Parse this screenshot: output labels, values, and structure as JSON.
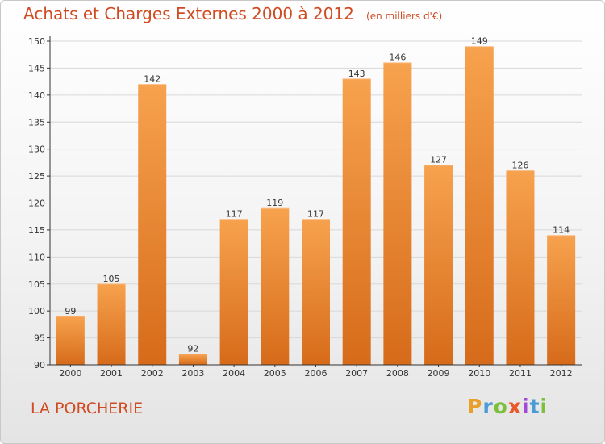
{
  "header": {
    "title": "Achats et Charges Externes 2000 à 2012",
    "subtitle": "(en milliers d'€)"
  },
  "footer": {
    "commune": "LA PORCHERIE",
    "logo_letters": [
      "P",
      "r",
      "o",
      "x",
      "i",
      "t",
      "i"
    ],
    "logo_colors": [
      "#e8a02a",
      "#4a9bd8",
      "#7cbf3a",
      "#e85a2a",
      "#a04ad8",
      "#4a9bd8",
      "#7cbf3a"
    ]
  },
  "chart_data": {
    "type": "bar",
    "title": "Achats et Charges Externes 2000 à 2012",
    "subtitle": "(en milliers d'€)",
    "categories": [
      "2000",
      "2001",
      "2002",
      "2003",
      "2004",
      "2005",
      "2006",
      "2007",
      "2008",
      "2009",
      "2010",
      "2011",
      "2012"
    ],
    "values": [
      99,
      105,
      142,
      92,
      117,
      119,
      117,
      143,
      146,
      127,
      149,
      126,
      114
    ],
    "ylim": [
      90,
      150
    ],
    "yticks": [
      90,
      95,
      100,
      105,
      110,
      115,
      120,
      125,
      130,
      135,
      140,
      145,
      150
    ],
    "grid": true,
    "colors": {
      "bar_light": "#f7a24e",
      "bar_dark": "#d66b1a",
      "grid": "#d8d8d8",
      "axis": "#333333"
    }
  }
}
